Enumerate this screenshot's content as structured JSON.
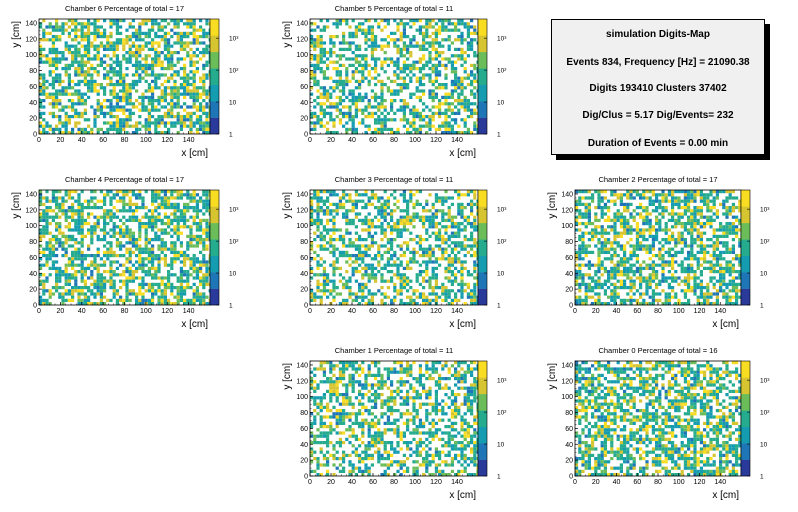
{
  "info": {
    "title": "simulation Digits-Map",
    "events_line": "Events 834, Frequency [Hz] = 21090.38",
    "digits_line": "Digits 193410 Clusters 37402",
    "ratio_line": "Dig/Clus = 5.17 Dig/Events= 232",
    "duration_line": "Duration of Events = 0.00 min"
  },
  "colors": {
    "palette": [
      "#2a3a9a",
      "#1f76b6",
      "#159cb0",
      "#25ab8e",
      "#6bbd5a",
      "#d7c431",
      "#f9dd22"
    ],
    "axis": "#000000"
  },
  "chart_data": [
    {
      "type": "heatmap",
      "title": "Chamber 6 Percentage of total = 17",
      "xlabel": "x [cm]",
      "ylabel": "y [cm]",
      "xlim": [
        0,
        160
      ],
      "ylim": [
        0,
        145
      ],
      "x_ticks": [
        "0",
        "20",
        "40",
        "60",
        "80",
        "100",
        "120",
        "140"
      ],
      "y_ticks": [
        "0",
        "20",
        "40",
        "60",
        "80",
        "100",
        "120",
        "140"
      ],
      "z_scale": "log",
      "z_ticks": [
        "1",
        "10",
        "10²",
        "10³"
      ]
    },
    {
      "type": "heatmap",
      "title": "Chamber 5 Percentage of total = 11",
      "xlabel": "x [cm]",
      "ylabel": "y [cm]",
      "xlim": [
        0,
        160
      ],
      "ylim": [
        0,
        145
      ],
      "x_ticks": [
        "0",
        "20",
        "40",
        "60",
        "80",
        "100",
        "120",
        "140"
      ],
      "y_ticks": [
        "0",
        "20",
        "40",
        "60",
        "80",
        "100",
        "120",
        "140"
      ],
      "z_scale": "log",
      "z_ticks": [
        "1",
        "10",
        "10²",
        "10³"
      ]
    },
    {
      "type": "heatmap",
      "title": "Chamber 4 Percentage of total = 17",
      "xlabel": "x [cm]",
      "ylabel": "y [cm]",
      "xlim": [
        0,
        160
      ],
      "ylim": [
        0,
        145
      ],
      "x_ticks": [
        "0",
        "20",
        "40",
        "60",
        "80",
        "100",
        "120",
        "140"
      ],
      "y_ticks": [
        "0",
        "20",
        "40",
        "60",
        "80",
        "100",
        "120",
        "140"
      ],
      "z_scale": "log",
      "z_ticks": [
        "1",
        "10",
        "10²",
        "10³"
      ]
    },
    {
      "type": "heatmap",
      "title": "Chamber 3 Percentage of total = 11",
      "xlabel": "x [cm]",
      "ylabel": "y [cm]",
      "xlim": [
        0,
        160
      ],
      "ylim": [
        0,
        145
      ],
      "x_ticks": [
        "0",
        "20",
        "40",
        "60",
        "80",
        "100",
        "120",
        "140"
      ],
      "y_ticks": [
        "0",
        "20",
        "40",
        "60",
        "80",
        "100",
        "120",
        "140"
      ],
      "z_scale": "log",
      "z_ticks": [
        "1",
        "10",
        "10²",
        "10³"
      ]
    },
    {
      "type": "heatmap",
      "title": "Chamber 2 Percentage of total = 17",
      "xlabel": "x [cm]",
      "ylabel": "y [cm]",
      "xlim": [
        0,
        160
      ],
      "ylim": [
        0,
        145
      ],
      "x_ticks": [
        "0",
        "20",
        "40",
        "60",
        "80",
        "100",
        "120",
        "140"
      ],
      "y_ticks": [
        "0",
        "20",
        "40",
        "60",
        "80",
        "100",
        "120",
        "140"
      ],
      "z_scale": "log",
      "z_ticks": [
        "1",
        "10",
        "10²",
        "10³"
      ]
    },
    {
      "type": "heatmap",
      "title": "Chamber 1 Percentage of total = 11",
      "xlabel": "x [cm]",
      "ylabel": "y [cm]",
      "xlim": [
        0,
        160
      ],
      "ylim": [
        0,
        145
      ],
      "x_ticks": [
        "0",
        "20",
        "40",
        "60",
        "80",
        "100",
        "120",
        "140"
      ],
      "y_ticks": [
        "0",
        "20",
        "40",
        "60",
        "80",
        "100",
        "120",
        "140"
      ],
      "z_scale": "log",
      "z_ticks": [
        "1",
        "10",
        "10²",
        "10³"
      ]
    },
    {
      "type": "heatmap",
      "title": "Chamber 0 Percentage of total = 16",
      "xlabel": "x [cm]",
      "ylabel": "y [cm]",
      "xlim": [
        0,
        160
      ],
      "ylim": [
        0,
        145
      ],
      "x_ticks": [
        "0",
        "20",
        "40",
        "60",
        "80",
        "100",
        "120",
        "140"
      ],
      "y_ticks": [
        "0",
        "20",
        "40",
        "60",
        "80",
        "100",
        "120",
        "140"
      ],
      "z_scale": "log",
      "z_ticks": [
        "1",
        "10",
        "10²",
        "10³"
      ]
    }
  ]
}
